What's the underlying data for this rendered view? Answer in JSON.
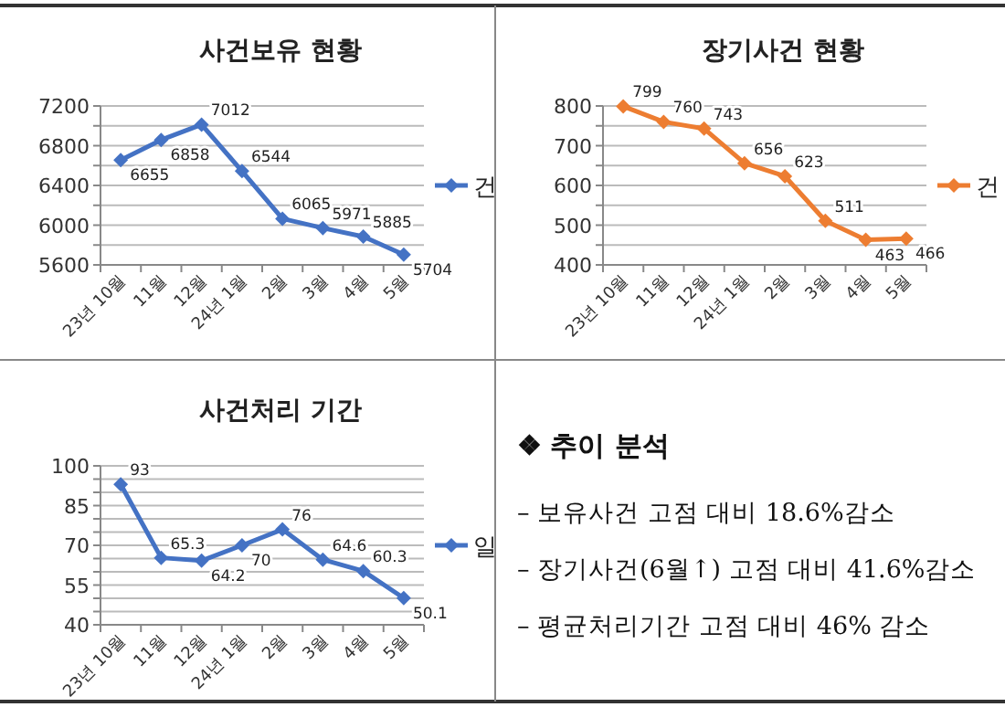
{
  "chart_data": [
    {
      "type": "line",
      "title": "사건보유 현황",
      "categories": [
        "23년 10월",
        "11월",
        "12월",
        "24년 1월",
        "2월",
        "3월",
        "4월",
        "5월"
      ],
      "series": [
        {
          "name": "건",
          "color": "#4472c4",
          "values": [
            6655,
            6858,
            7012,
            6544,
            6065,
            5971,
            5885,
            5704
          ]
        }
      ],
      "ylim": [
        5600,
        7200
      ],
      "yticks": [
        5600,
        {
          "value": 5800,
          "label": null
        },
        6000,
        {
          "value": 6200,
          "label": null
        },
        6400,
        {
          "value": 6600,
          "label": null
        },
        6800,
        {
          "value": 7000,
          "label": null
        },
        7200
      ],
      "grid": "y",
      "legend": "right",
      "marker": "diamond",
      "data_labels": true
    },
    {
      "type": "line",
      "title": "장기사건 현황",
      "categories": [
        "23년 10월",
        "11월",
        "12월",
        "24년 1월",
        "2월",
        "3월",
        "4월",
        "5월"
      ],
      "series": [
        {
          "name": "건",
          "color": "#ed7d31",
          "values": [
            799,
            760,
            743,
            656,
            623,
            511,
            463,
            466
          ]
        }
      ],
      "ylim": [
        400,
        800
      ],
      "yticks": [
        400,
        {
          "value": 450,
          "label": null
        },
        500,
        {
          "value": 550,
          "label": null
        },
        600,
        {
          "value": 650,
          "label": null
        },
        700,
        {
          "value": 750,
          "label": null
        },
        800
      ],
      "grid": "y",
      "legend": "right",
      "marker": "diamond",
      "data_labels": true
    },
    {
      "type": "line",
      "title": "사건처리 기간",
      "categories": [
        "23년 10월",
        "11월",
        "12월",
        "24년 1월",
        "2월",
        "3월",
        "4월",
        "5월"
      ],
      "series": [
        {
          "name": "일",
          "color": "#4472c4",
          "values": [
            93,
            65.3,
            64.2,
            70,
            76,
            64.6,
            60.3,
            50.1
          ]
        }
      ],
      "ylim": [
        40,
        100
      ],
      "yticks": [
        40,
        {
          "value": 45,
          "label": null
        },
        {
          "value": 50,
          "label": null
        },
        55,
        {
          "value": 60,
          "label": null
        },
        {
          "value": 65,
          "label": null
        },
        70,
        {
          "value": 75,
          "label": null
        },
        {
          "value": 80,
          "label": null
        },
        85,
        {
          "value": 90,
          "label": null
        },
        {
          "value": 95,
          "label": null
        },
        100
      ],
      "grid": "y",
      "legend": "right",
      "marker": "diamond",
      "data_labels": true
    },
    {
      "type": "other",
      "title": "❖ 추이 분석",
      "annotations": [
        "– 보유사건 고점 대비 18.6%감소",
        "– 장기사건(6월↑) 고점 대비 41.6%감소",
        "– 평균처리기간 고점 대비 46% 감소"
      ]
    }
  ]
}
